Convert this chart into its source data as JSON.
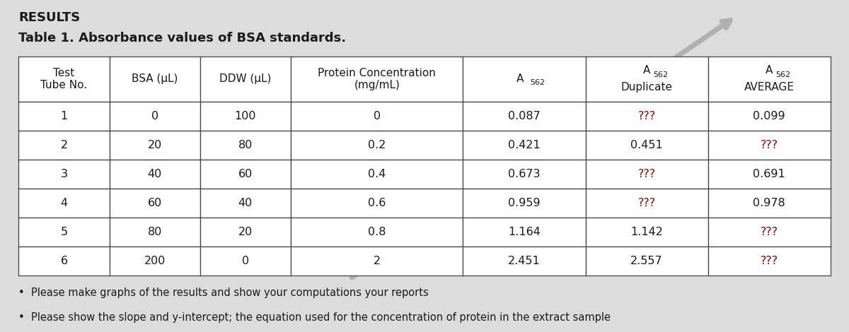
{
  "title_line1": "RESULTS",
  "title_line2": "Table 1. Absorbance values of BSA standards.",
  "rows": [
    [
      "1",
      "0",
      "100",
      "0",
      "0.087",
      "???",
      "0.099"
    ],
    [
      "2",
      "20",
      "80",
      "0.2",
      "0.421",
      "0.451",
      "???"
    ],
    [
      "3",
      "40",
      "60",
      "0.4",
      "0.673",
      "???",
      "0.691"
    ],
    [
      "4",
      "60",
      "40",
      "0.6",
      "0.959",
      "???",
      "0.978"
    ],
    [
      "5",
      "80",
      "20",
      "0.8",
      "1.164",
      "1.142",
      "???"
    ],
    [
      "6",
      "200",
      "0",
      "2",
      "2.451",
      "2.557",
      "???"
    ]
  ],
  "question_cells": {
    "0_5": true,
    "1_6": true,
    "2_5": true,
    "3_5": true,
    "4_6": true,
    "5_6": true
  },
  "bullet_points": [
    "Please make graphs of the results and show your computations your reports",
    "Please show the slope and y-intercept; the equation used for the concentration of protein in the extract sample"
  ],
  "bg_color": "#dcdcdc",
  "table_bg": "#ffffff",
  "question_color": "#8B0000",
  "normal_text_color": "#1a1a1a",
  "border_color": "#444444",
  "col_widths_ratio": [
    1.0,
    1.0,
    1.0,
    1.9,
    1.35,
    1.35,
    1.35
  ],
  "font_size_title1": 13,
  "font_size_title2": 13,
  "font_size_header": 11,
  "font_size_cell": 11.5,
  "font_size_bullet": 10.5
}
